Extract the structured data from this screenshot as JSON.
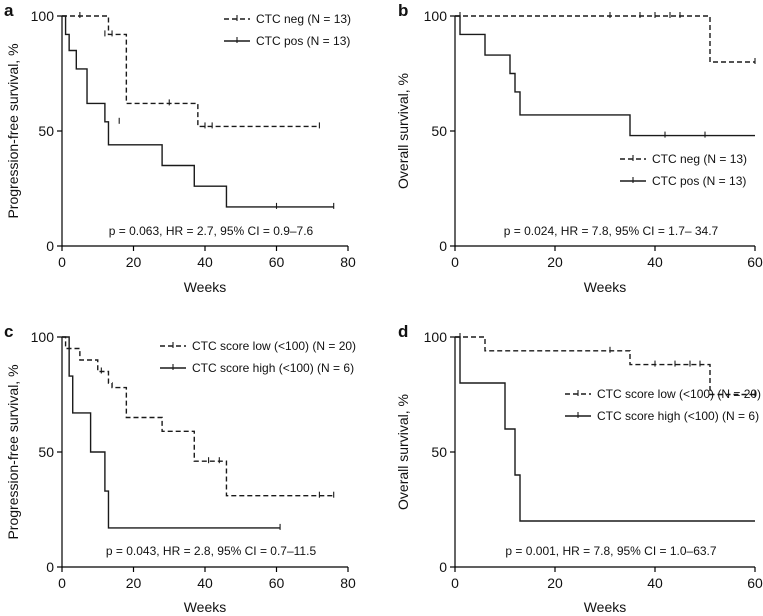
{
  "figure": {
    "panels": [
      {
        "letter": "a",
        "annotation": "p = 0.063, HR = 2.7, 95% CI = 0.9–7.6",
        "legend": [
          {
            "label": "CTC neg (N = 13)",
            "style": "dashed"
          },
          {
            "label": "CTC pos (N = 13)",
            "style": "solid"
          }
        ]
      },
      {
        "letter": "b",
        "annotation": "p = 0.024, HR = 7.8, 95% CI = 1.7– 34.7",
        "legend": [
          {
            "label": "CTC neg (N = 13)",
            "style": "dashed"
          },
          {
            "label": "CTC pos (N = 13)",
            "style": "solid"
          }
        ]
      },
      {
        "letter": "c",
        "annotation": "p = 0.043, HR = 2.8, 95% CI = 0.7–11.5",
        "legend": [
          {
            "label": "CTC score low (<100) (N = 20)",
            "style": "dashed"
          },
          {
            "label": "CTC score high (<100) (N = 6)",
            "style": "solid"
          }
        ]
      },
      {
        "letter": "d",
        "annotation": "p = 0.001, HR = 7.8, 95% CI = 1.0–63.7",
        "legend": [
          {
            "label": "CTC score low (<100) (N = 20)",
            "style": "dashed"
          },
          {
            "label": "CTC score high (<100) (N = 6)",
            "style": "solid"
          }
        ]
      }
    ]
  },
  "chart_data": [
    {
      "type": "line",
      "title": "a",
      "xlabel": "Weeks",
      "ylabel": "Progression-free survival, %",
      "xlim": [
        0,
        80
      ],
      "ylim": [
        0,
        100
      ],
      "xticks": [
        0,
        20,
        40,
        60,
        80
      ],
      "yticks": [
        0,
        50,
        100
      ],
      "series": [
        {
          "name": "CTC neg (N = 13)",
          "style": "dashed",
          "x": [
            0,
            11,
            13,
            15,
            18,
            37,
            38,
            72
          ],
          "y": [
            100,
            100,
            92,
            92,
            62,
            62,
            52,
            52
          ],
          "censored": [
            [
              5,
              100
            ],
            [
              12,
              92
            ],
            [
              14,
              92
            ],
            [
              30,
              62
            ],
            [
              40,
              52
            ],
            [
              42,
              52
            ],
            [
              72,
              52
            ]
          ]
        },
        {
          "name": "CTC pos (N = 13)",
          "style": "solid",
          "x": [
            0,
            1,
            2,
            4,
            7,
            12,
            13,
            28,
            37,
            46,
            76
          ],
          "y": [
            100,
            92,
            85,
            77,
            62,
            54,
            44,
            35,
            26,
            17,
            17
          ],
          "censored": [
            [
              16,
              54
            ],
            [
              60,
              17
            ],
            [
              76,
              17
            ]
          ]
        }
      ]
    },
    {
      "type": "line",
      "title": "b",
      "xlabel": "Weeks",
      "ylabel": "Overall survival, %",
      "xlim": [
        0,
        60
      ],
      "ylim": [
        0,
        100
      ],
      "xticks": [
        0,
        20,
        40,
        60
      ],
      "yticks": [
        0,
        50,
        100
      ],
      "series": [
        {
          "name": "CTC neg (N = 13)",
          "style": "dashed",
          "x": [
            0,
            51,
            60
          ],
          "y": [
            100,
            80,
            80
          ],
          "censored": [
            [
              1,
              100
            ],
            [
              31,
              100
            ],
            [
              37,
              100
            ],
            [
              40,
              100
            ],
            [
              43,
              100
            ],
            [
              45,
              100
            ],
            [
              60,
              80
            ]
          ]
        },
        {
          "name": "CTC pos (N = 13)",
          "style": "solid",
          "x": [
            0,
            1,
            6,
            11,
            12,
            13,
            35,
            60
          ],
          "y": [
            100,
            92,
            83,
            75,
            67,
            57,
            48,
            48
          ],
          "censored": [
            [
              42,
              48
            ],
            [
              50,
              48
            ]
          ]
        }
      ]
    },
    {
      "type": "line",
      "title": "c",
      "xlabel": "Weeks",
      "ylabel": "Progression-free survival, %",
      "xlim": [
        0,
        80
      ],
      "ylim": [
        0,
        100
      ],
      "xticks": [
        0,
        20,
        40,
        60,
        80
      ],
      "yticks": [
        0,
        50,
        100
      ],
      "series": [
        {
          "name": "CTC score low (<100) (N = 20)",
          "style": "dashed",
          "x": [
            0,
            1,
            5,
            10,
            13,
            14,
            18,
            28,
            37,
            46,
            76
          ],
          "y": [
            100,
            95,
            90,
            85,
            80,
            78,
            65,
            59,
            46,
            31,
            31
          ],
          "censored": [
            [
              11,
              85
            ],
            [
              41,
              46
            ],
            [
              44,
              46
            ],
            [
              72,
              31
            ],
            [
              76,
              31
            ]
          ]
        },
        {
          "name": "CTC score high (<100) (N = 6)",
          "style": "solid",
          "x": [
            0,
            2,
            3,
            8,
            12,
            13,
            61
          ],
          "y": [
            100,
            83,
            67,
            50,
            33,
            17,
            17
          ],
          "censored": [
            [
              61,
              17
            ]
          ]
        }
      ]
    },
    {
      "type": "line",
      "title": "d",
      "xlabel": "Weeks",
      "ylabel": "Overall survival, %",
      "xlim": [
        0,
        60
      ],
      "ylim": [
        0,
        100
      ],
      "xticks": [
        0,
        20,
        40,
        60
      ],
      "yticks": [
        0,
        50,
        100
      ],
      "series": [
        {
          "name": "CTC score low (<100) (N = 20)",
          "style": "dashed",
          "x": [
            0,
            6,
            35,
            51,
            60
          ],
          "y": [
            100,
            94,
            88,
            75,
            75
          ],
          "censored": [
            [
              1,
              100
            ],
            [
              31,
              94
            ],
            [
              40,
              88
            ],
            [
              44,
              88
            ],
            [
              47,
              88
            ],
            [
              49,
              88
            ],
            [
              60,
              75
            ]
          ]
        },
        {
          "name": "CTC score high (<100) (N = 6)",
          "style": "solid",
          "x": [
            0,
            1,
            10,
            12,
            13,
            60
          ],
          "y": [
            100,
            80,
            60,
            40,
            20,
            20
          ],
          "censored": []
        }
      ]
    }
  ],
  "colors": {
    "line": "#1a1a1a",
    "axis": "#000000"
  }
}
